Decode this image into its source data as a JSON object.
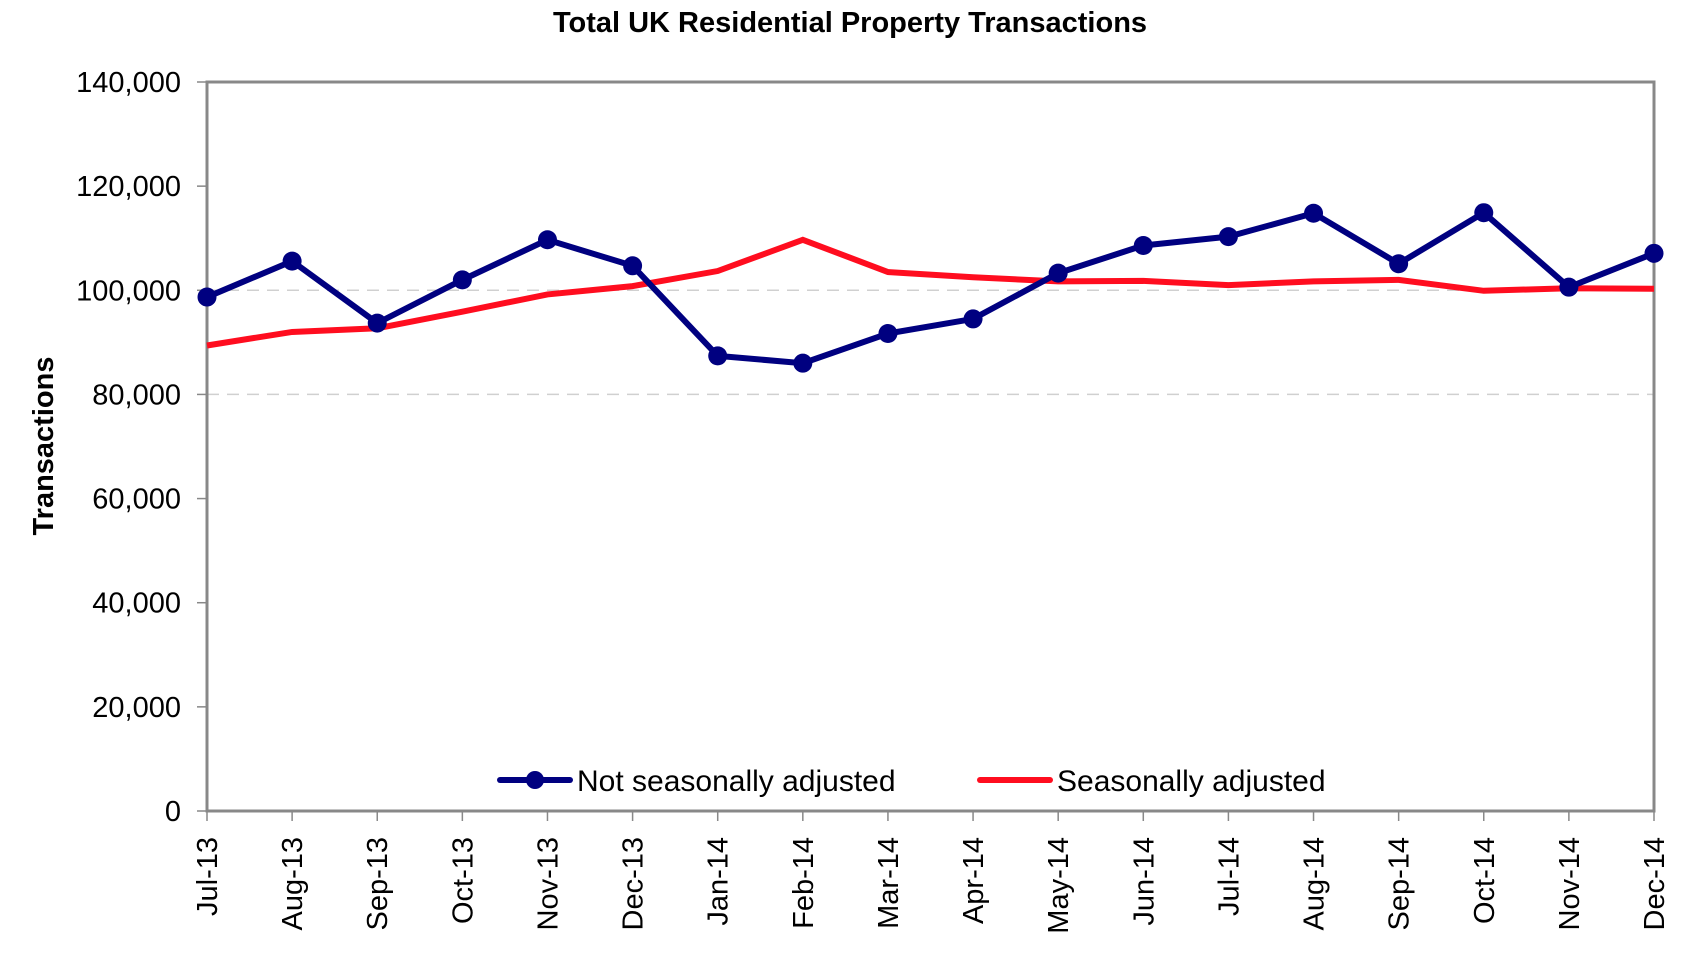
{
  "chart_data": {
    "type": "line",
    "title": "Total UK Residential Property Transactions",
    "xlabel": "",
    "ylabel": "Transactions",
    "ylim": [
      0,
      140000
    ],
    "yticks": [
      0,
      20000,
      40000,
      60000,
      80000,
      100000,
      120000,
      140000
    ],
    "ytick_labels": [
      "0",
      "20,000",
      "40,000",
      "60,000",
      "80,000",
      "100,000",
      "120,000",
      "140,000"
    ],
    "gridlines": [
      80000,
      100000
    ],
    "grid": "dashed horizontal at 80,000 and 100,000",
    "legend_position": "bottom-center (inside plot)",
    "categories": [
      "Jul-13",
      "Aug-13",
      "Sep-13",
      "Oct-13",
      "Nov-13",
      "Dec-13",
      "Jan-14",
      "Feb-14",
      "Mar-14",
      "Apr-14",
      "May-14",
      "Jun-14",
      "Jul-14",
      "Aug-14",
      "Sep-14",
      "Oct-14",
      "Nov-14",
      "Dec-14"
    ],
    "series": [
      {
        "name": "Not seasonally adjusted",
        "color": "#000080",
        "marker": "circle",
        "values": [
          98700,
          105600,
          93700,
          102000,
          109700,
          104700,
          87400,
          86000,
          91700,
          94500,
          103300,
          108600,
          110300,
          114800,
          105100,
          114900,
          100600,
          107100
        ]
      },
      {
        "name": "Seasonally adjusted",
        "color": "#ff0d1f",
        "marker": "none",
        "values": [
          89400,
          92000,
          92700,
          95900,
          99200,
          100800,
          103700,
          109700,
          103500,
          102500,
          101700,
          101800,
          101000,
          101700,
          102000,
          99900,
          100400,
          100300
        ]
      }
    ]
  }
}
